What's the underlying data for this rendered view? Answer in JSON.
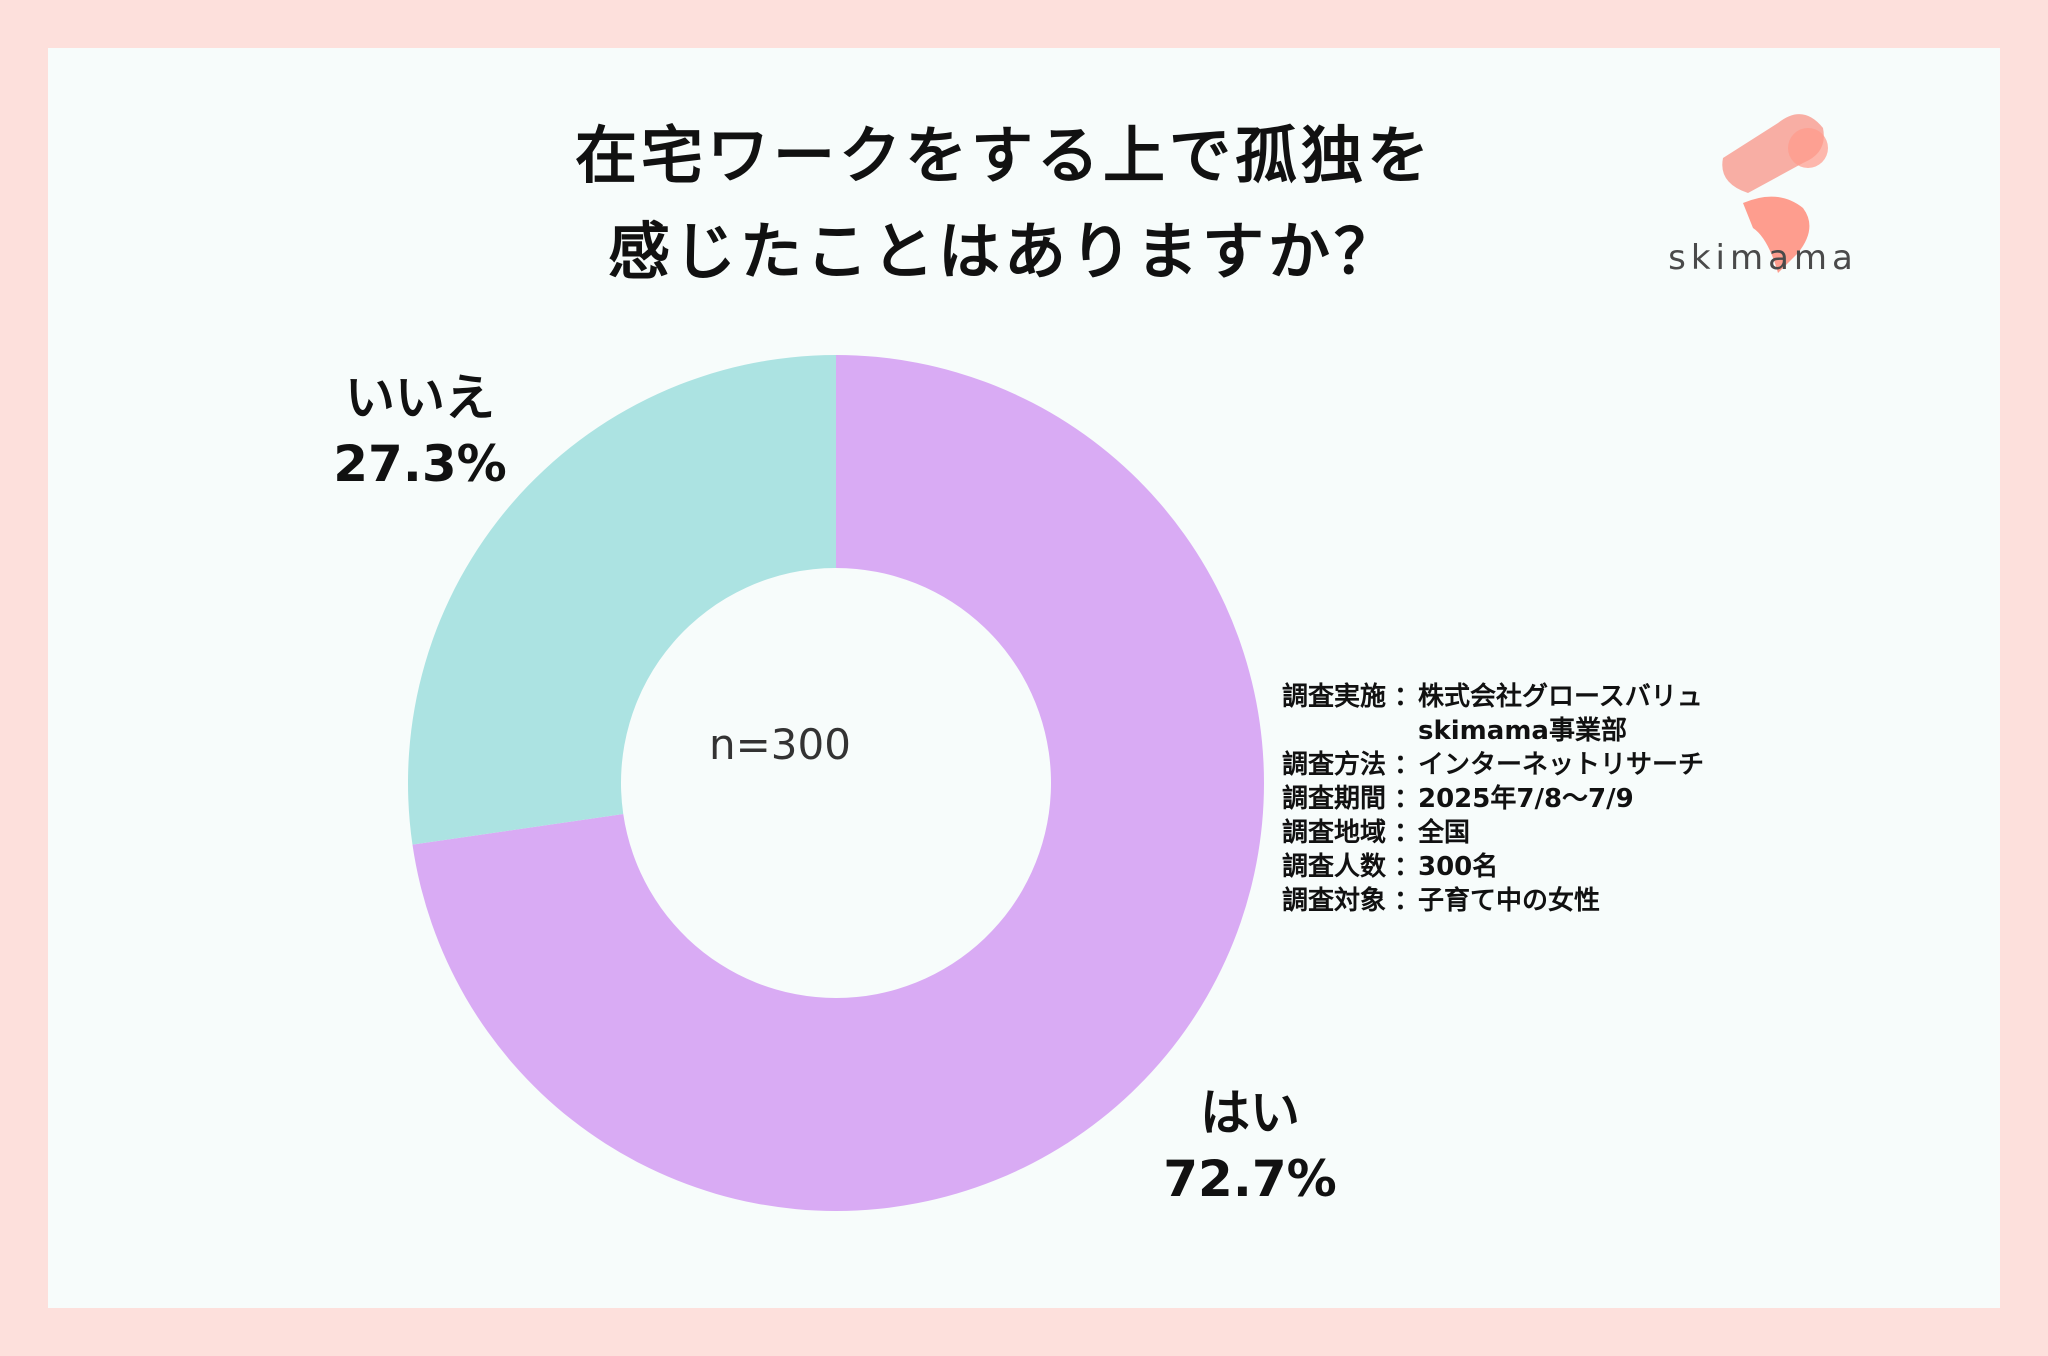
{
  "title_lines": [
    "在宅ワークをする上で孤独を",
    "感じたことはありますか？"
  ],
  "brand": {
    "name": "skimama",
    "accent": "#f7a59a",
    "accent2": "#ff8c7a"
  },
  "chart_data": {
    "type": "pie",
    "variant": "donut",
    "center_label": "n=300",
    "slices": [
      {
        "label": "はい",
        "value": 72.7,
        "value_label": "72.7%",
        "color": "#d9abf4"
      },
      {
        "label": "いいえ",
        "value": 27.3,
        "value_label": "27.3%",
        "color": "#ace3e2"
      }
    ]
  },
  "survey": [
    {
      "key": "調査実施",
      "sep": "：",
      "values": [
        "株式会社グロースバリュ",
        "skimama事業部"
      ]
    },
    {
      "key": "調査方法",
      "sep": "：",
      "values": [
        "インターネットリサーチ"
      ]
    },
    {
      "key": "調査期間",
      "sep": "：",
      "values": [
        "2025年7/8〜7/9"
      ]
    },
    {
      "key": "調査地域",
      "sep": "：",
      "values": [
        "全国"
      ]
    },
    {
      "key": "調査人数",
      "sep": "：",
      "values": [
        "300名"
      ]
    },
    {
      "key": "調査対象",
      "sep": "：",
      "values": [
        "子育て中の女性"
      ]
    }
  ]
}
